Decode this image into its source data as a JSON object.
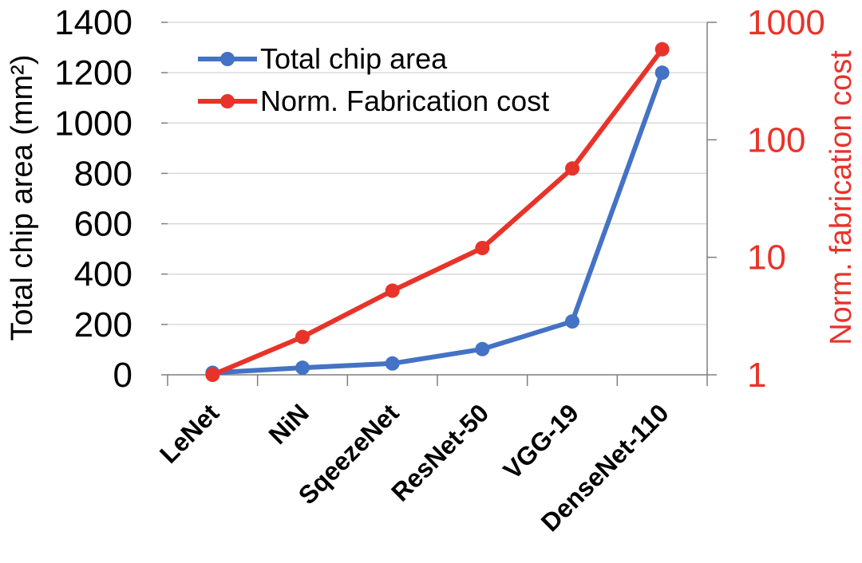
{
  "chart_data": {
    "type": "line",
    "categories": [
      "LeNet",
      "NiN",
      "SqeezeNet",
      "ResNet-50",
      "VGG-19",
      "DenseNet-110"
    ],
    "series": [
      {
        "name": "Total chip area",
        "axis": "left",
        "color": "#4472C4",
        "values": [
          8,
          28,
          45,
          102,
          212,
          1200
        ]
      },
      {
        "name": "Norm. Fabrication cost",
        "axis": "right",
        "color": "#E8332A",
        "values": [
          1,
          2.1,
          5.2,
          12,
          57,
          590
        ]
      }
    ],
    "y_left": {
      "label": "Total chip area (mm²)",
      "ylim": [
        0,
        1400
      ],
      "ticks": [
        "0",
        "200",
        "400",
        "600",
        "800",
        "1000",
        "1200",
        "1400"
      ]
    },
    "y_right": {
      "label": "Norm. fabrication cost",
      "scale": "log",
      "ylim": [
        1,
        1000
      ],
      "ticks": [
        "1",
        "10",
        "100",
        "1000"
      ],
      "color": "#E8332A"
    },
    "grid": true,
    "legend": "top-left"
  }
}
